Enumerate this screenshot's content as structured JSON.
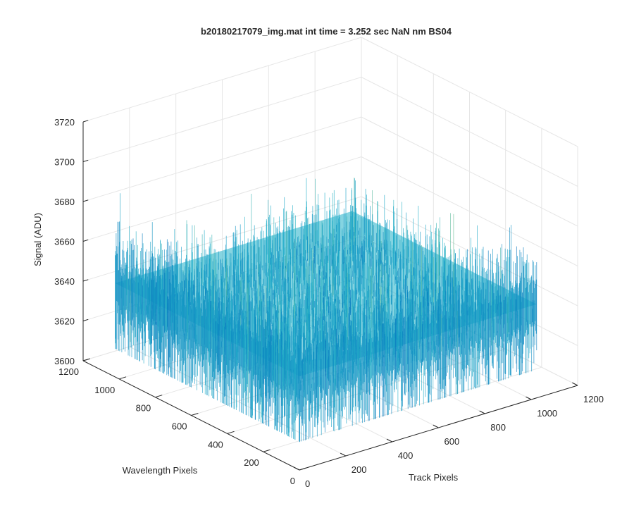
{
  "chart_data": {
    "type": "surface",
    "title": "b20180217079_img.mat int time = 3.252 sec  NaN nm BS04",
    "xlabel": "Track Pixels",
    "ylabel": "Wavelength Pixels",
    "zlabel": "Signal (ADU)",
    "xlim": [
      0,
      1200
    ],
    "ylim": [
      0,
      1200
    ],
    "zlim": [
      3600,
      3720
    ],
    "x_ticks": [
      "0",
      "200",
      "400",
      "600",
      "800",
      "1000",
      "1200"
    ],
    "y_ticks": [
      "0",
      "200",
      "400",
      "600",
      "800",
      "1000",
      "1200"
    ],
    "z_ticks": [
      "3600",
      "3620",
      "3640",
      "3660",
      "3680",
      "3700",
      "3720"
    ],
    "data_extent": {
      "x": [
        1,
        1024
      ],
      "y": [
        1,
        1024
      ]
    },
    "signal_mean": 3647,
    "signal_range": [
      3622,
      3705
    ],
    "grid": true,
    "colormap": "parula",
    "colors": {
      "low": "#0072bd",
      "mid": "#21b0c9",
      "high": "#e1d34a"
    }
  }
}
